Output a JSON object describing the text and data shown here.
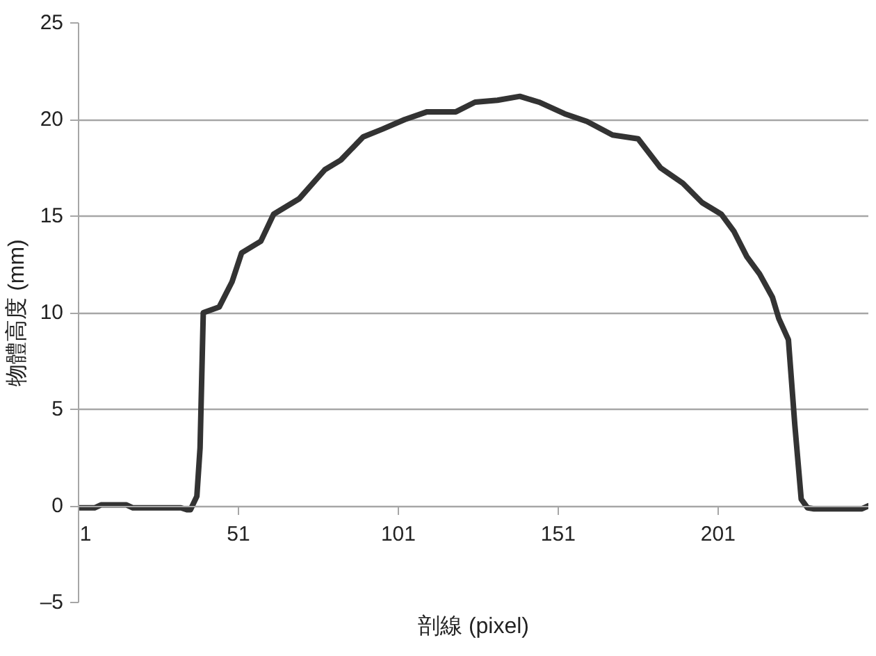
{
  "chart_data": {
    "type": "line",
    "xlabel": "剖線 (pixel)",
    "ylabel": "物體高度 (mm)",
    "x": [
      1,
      6,
      8,
      16,
      18,
      33,
      35,
      36,
      38,
      39,
      40,
      45,
      49,
      52,
      58,
      62,
      70,
      78,
      83,
      90,
      96,
      103,
      110,
      119,
      125,
      132,
      139,
      145,
      153,
      160,
      168,
      176,
      183,
      190,
      196,
      202,
      206,
      210,
      214,
      218,
      220,
      223,
      225,
      227,
      229,
      231,
      246,
      248
    ],
    "series": [
      {
        "color": "#333333",
        "values": [
          -0.1,
          -0.1,
          0.05,
          0.05,
          -0.1,
          -0.1,
          -0.2,
          -0.2,
          0.5,
          3,
          10,
          10.3,
          11.6,
          13.1,
          13.7,
          15.1,
          15.9,
          17.4,
          17.9,
          19.1,
          19.5,
          20.0,
          20.4,
          20.4,
          20.9,
          21.0,
          21.2,
          20.9,
          20.3,
          19.9,
          19.2,
          19.0,
          17.5,
          16.7,
          15.7,
          15.1,
          14.2,
          12.9,
          12.0,
          10.8,
          9.7,
          8.6,
          4.2,
          0.35,
          -0.1,
          -0.15,
          -0.15,
          0
        ]
      }
    ],
    "xlim": [
      1,
      248
    ],
    "xticks": [
      1,
      51,
      101,
      151,
      201
    ],
    "ylim": [
      -5,
      25
    ],
    "yticks": [
      {
        "value": -5,
        "label": "–5"
      },
      0,
      5,
      10,
      15,
      20,
      25
    ],
    "grid": "y",
    "marker": "none",
    "line_style": "solid"
  }
}
